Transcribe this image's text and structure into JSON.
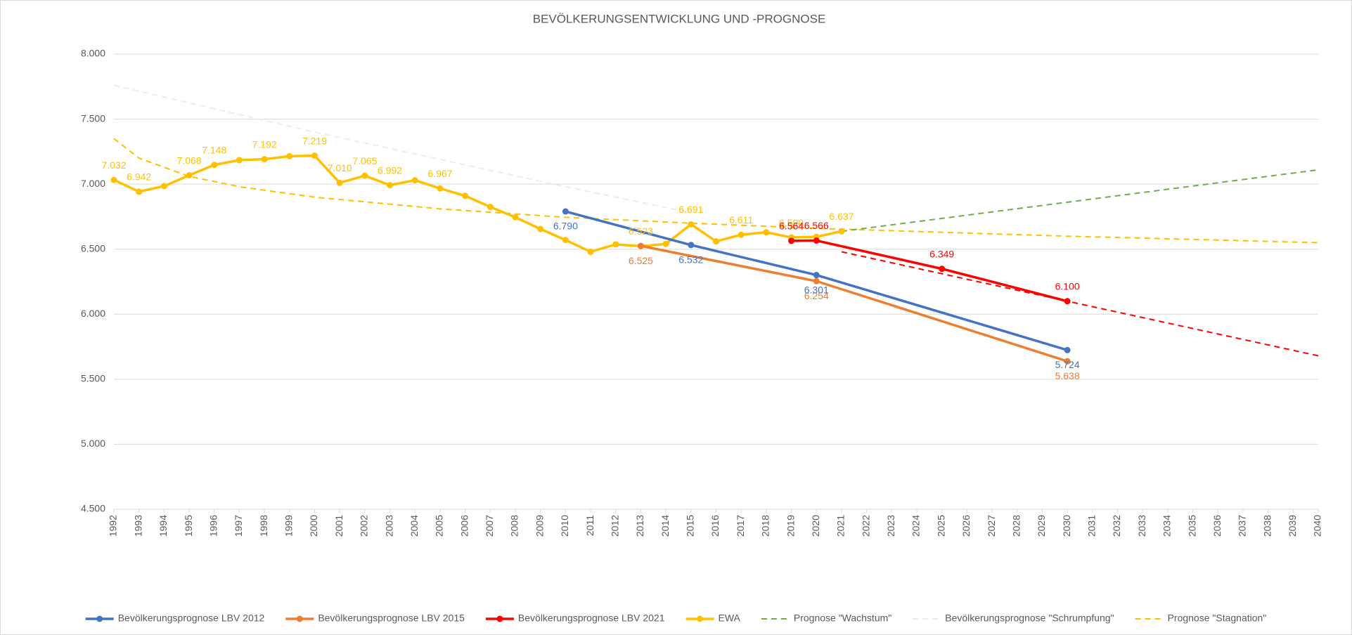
{
  "chart_data": {
    "type": "line",
    "title": "BEVÖLKERUNGSENTWICKLUNG UND -PROGNOSE",
    "xlim": [
      1992,
      2040
    ],
    "xticks": [
      1992,
      1993,
      1994,
      1995,
      1996,
      1997,
      1998,
      1999,
      2000,
      2001,
      2002,
      2003,
      2004,
      2005,
      2006,
      2007,
      2008,
      2009,
      2010,
      2011,
      2012,
      2013,
      2014,
      2015,
      2016,
      2017,
      2018,
      2019,
      2020,
      2021,
      2022,
      2023,
      2024,
      2025,
      2026,
      2027,
      2028,
      2029,
      2030,
      2031,
      2032,
      2033,
      2034,
      2035,
      2036,
      2037,
      2038,
      2039,
      2040
    ],
    "ylim": [
      4500,
      8000
    ],
    "yticks": [
      {
        "value": 4500,
        "label": "4.500"
      },
      {
        "value": 5000,
        "label": "5.000"
      },
      {
        "value": 5500,
        "label": "5.500"
      },
      {
        "value": 6000,
        "label": "6.000"
      },
      {
        "value": 6500,
        "label": "6.500"
      },
      {
        "value": 7000,
        "label": "7.000"
      },
      {
        "value": 7500,
        "label": "7.500"
      },
      {
        "value": 8000,
        "label": "8.000"
      }
    ],
    "grid": true,
    "legend": "bottom",
    "series": [
      {
        "name": "Bevölkerungsprognose LBV 2012",
        "color": "#4472c4",
        "markers": true,
        "dash": false,
        "x": [
          2010,
          2015,
          2020,
          2030
        ],
        "values": [
          6790,
          6532,
          6301,
          5724
        ],
        "value_labels": [
          "6.790",
          "6.532",
          "6.301",
          "5.724"
        ]
      },
      {
        "name": "Bevölkerungsprognose LBV 2015",
        "color": "#ed7d31",
        "markers": true,
        "dash": false,
        "x": [
          2013,
          2020,
          2030
        ],
        "values": [
          6525,
          6254,
          5638
        ],
        "value_labels": [
          "6.525",
          "6.254",
          "5.638"
        ]
      },
      {
        "name": "Bevölkerungsprognose LBV 2021",
        "color": "#ff0000",
        "markers": true,
        "dash": false,
        "x": [
          2019,
          2020,
          2025,
          2030
        ],
        "values": [
          6564,
          6566,
          6349,
          6100
        ],
        "value_labels": [
          "6.564",
          "6.566",
          "6.349",
          "6.100"
        ]
      },
      {
        "name": "EWA",
        "color": "#ffc000",
        "markers": true,
        "dash": false,
        "x": [
          1992,
          1993,
          1994,
          1995,
          1996,
          1997,
          1998,
          1999,
          2000,
          2001,
          2002,
          2003,
          2004,
          2005,
          2006,
          2007,
          2008,
          2009,
          2010,
          2011,
          2012,
          2013,
          2014,
          2015,
          2016,
          2017,
          2018,
          2019,
          2020,
          2021
        ],
        "values": [
          7032,
          6942,
          6985,
          7068,
          7148,
          7185,
          7192,
          7215,
          7219,
          7010,
          7065,
          6992,
          7030,
          6967,
          6910,
          6825,
          6745,
          6655,
          6570,
          6480,
          6537,
          6523,
          6540,
          6691,
          6560,
          6611,
          6630,
          6590,
          6595,
          6637
        ],
        "value_labels": [
          "7.032",
          "6.942",
          null,
          "7.068",
          "7.148",
          null,
          "7.192",
          null,
          "7.219",
          "7.010",
          "7.065",
          "6.992",
          null,
          "6.967",
          null,
          null,
          null,
          null,
          null,
          null,
          null,
          "6.523",
          null,
          "6.691",
          null,
          "6.611",
          null,
          "6.590",
          null,
          "6.637"
        ]
      },
      {
        "name": "Prognose \"Wachstum\"",
        "color": "#70ad47",
        "markers": false,
        "dash": true,
        "x": [
          2021,
          2040
        ],
        "values": [
          6637,
          7110
        ]
      },
      {
        "name": "Bevölkerungsprognose \"Schrumpfung\"",
        "color": "#ececec",
        "markers": false,
        "dash": true,
        "x": [
          1992,
          2000,
          2010,
          2015
        ],
        "values": [
          7760,
          7400,
          6980,
          6780
        ]
      },
      {
        "name": "Prognose \"Stagnation\"",
        "color": "#ffc000",
        "markers": false,
        "dash": true,
        "x": [
          1992,
          1993,
          1995,
          1997,
          2000,
          2005,
          2010,
          2015,
          2020,
          2030,
          2040
        ],
        "values": [
          7350,
          7200,
          7060,
          6980,
          6900,
          6810,
          6745,
          6700,
          6660,
          6600,
          6550
        ]
      },
      {
        "color": "#ff0000",
        "markers": false,
        "dash": true,
        "x": [
          2021,
          2030,
          2040
        ],
        "values": [
          6480,
          6100,
          5680
        ]
      }
    ]
  }
}
